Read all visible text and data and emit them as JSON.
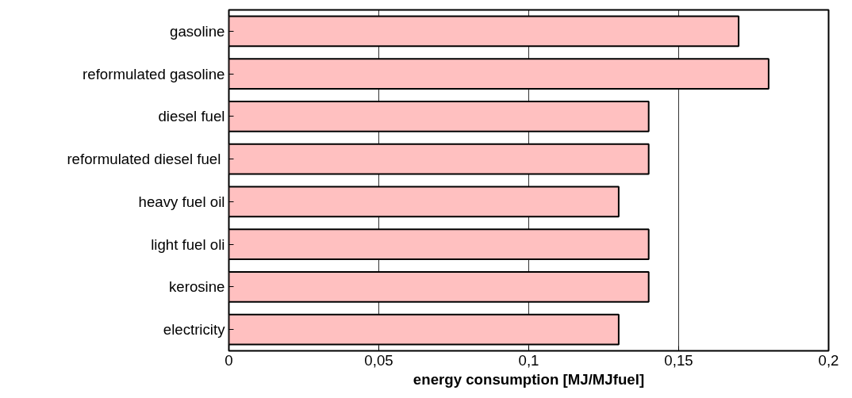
{
  "chart_data": {
    "type": "bar",
    "orientation": "horizontal",
    "xlabel": "energy consumption [MJ/MJfuel]",
    "categories": [
      "gasoline",
      "reformulated gasoline",
      "diesel fuel",
      "reformulated diesel  fuel",
      "heavy fuel oil",
      "light fuel oli",
      "kerosine",
      "electricity"
    ],
    "values": [
      0.17,
      0.18,
      0.14,
      0.14,
      0.13,
      0.14,
      0.14,
      0.13
    ],
    "color": "#ffc0c0",
    "xlim": [
      0,
      0.2
    ],
    "xticks": [
      0,
      {
        "value": 0.05,
        "label": "0,05"
      },
      {
        "value": 0.1,
        "label": "0,1"
      },
      {
        "value": 0.15,
        "label": "0,15"
      },
      {
        "value": 0.2,
        "label": "0,2"
      }
    ],
    "grid": "x"
  }
}
